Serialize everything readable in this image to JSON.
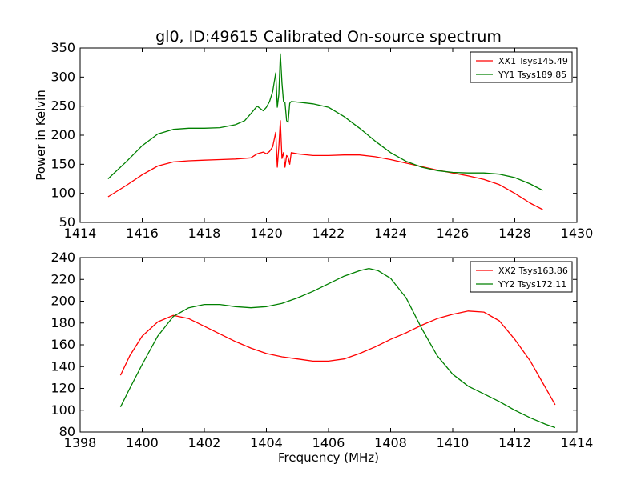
{
  "chart_data": {
    "type": "line",
    "title": "gl0, ID:49615 Calibrated On-source spectrum",
    "charts": [
      {
        "xlim": [
          1414,
          1430
        ],
        "ylim": [
          50,
          350
        ],
        "xticks": [
          "1414",
          "1416",
          "1418",
          "1420",
          "1422",
          "1424",
          "1426",
          "1428",
          "1430"
        ],
        "yticks": [
          "50",
          "100",
          "150",
          "200",
          "250",
          "300",
          "350"
        ],
        "ylabel": "Power in Kelvin",
        "xlabel": "",
        "legend_position": "top-right",
        "series": [
          {
            "name": "XX1 Tsys145.49",
            "color": "#ff0000",
            "x": [
              1414.9,
              1415.5,
              1416.0,
              1416.5,
              1417.0,
              1417.5,
              1418.0,
              1418.5,
              1419.0,
              1419.5,
              1419.7,
              1419.9,
              1420.0,
              1420.1,
              1420.2,
              1420.3,
              1420.35,
              1420.4,
              1420.45,
              1420.5,
              1420.55,
              1420.6,
              1420.65,
              1420.7,
              1420.75,
              1420.8,
              1421.0,
              1421.5,
              1422.0,
              1422.5,
              1423.0,
              1423.5,
              1424.0,
              1424.5,
              1425.0,
              1425.5,
              1426.0,
              1426.5,
              1427.0,
              1427.5,
              1428.0,
              1428.5,
              1428.9
            ],
            "y": [
              94,
              114,
              132,
              147,
              154,
              156,
              157,
              158,
              159,
              161,
              168,
              171,
              168,
              172,
              180,
              205,
              145,
              180,
              225,
              160,
              170,
              145,
              165,
              162,
              150,
              170,
              168,
              165,
              165,
              166,
              166,
              163,
              158,
              152,
              146,
              140,
              135,
              130,
              124,
              115,
              100,
              83,
              72
            ]
          },
          {
            "name": "YY1 Tsys189.85",
            "color": "#008000",
            "x": [
              1414.9,
              1415.5,
              1416.0,
              1416.5,
              1417.0,
              1417.5,
              1418.0,
              1418.5,
              1419.0,
              1419.3,
              1419.5,
              1419.7,
              1419.9,
              1420.0,
              1420.1,
              1420.2,
              1420.3,
              1420.35,
              1420.4,
              1420.45,
              1420.5,
              1420.55,
              1420.6,
              1420.65,
              1420.7,
              1420.75,
              1420.8,
              1421.0,
              1421.5,
              1422.0,
              1422.5,
              1423.0,
              1423.5,
              1424.0,
              1424.5,
              1425.0,
              1425.5,
              1426.0,
              1426.5,
              1427.0,
              1427.5,
              1428.0,
              1428.5,
              1428.9
            ],
            "y": [
              125,
              155,
              182,
              202,
              210,
              212,
              212,
              213,
              218,
              225,
              237,
              250,
              242,
              248,
              258,
              275,
              307,
              248,
              270,
              340,
              290,
              258,
              256,
              225,
              222,
              255,
              258,
              257,
              254,
              248,
              232,
              212,
              190,
              170,
              155,
              145,
              139,
              136,
              135,
              135,
              133,
              127,
              116,
              105
            ]
          }
        ]
      },
      {
        "xlim": [
          1398,
          1414
        ],
        "ylim": [
          80,
          240
        ],
        "xticks": [
          "1398",
          "1400",
          "1402",
          "1404",
          "1406",
          "1408",
          "1410",
          "1412",
          "1414"
        ],
        "yticks": [
          "80",
          "100",
          "120",
          "140",
          "160",
          "180",
          "200",
          "220",
          "240"
        ],
        "ylabel": "",
        "xlabel": "Frequency (MHz)",
        "legend_position": "top-right",
        "series": [
          {
            "name": "XX2 Tsys163.86",
            "color": "#ff0000",
            "x": [
              1399.3,
              1399.6,
              1400.0,
              1400.5,
              1401.0,
              1401.5,
              1402.0,
              1402.5,
              1403.0,
              1403.5,
              1404.0,
              1404.5,
              1405.0,
              1405.5,
              1406.0,
              1406.5,
              1407.0,
              1407.5,
              1408.0,
              1408.5,
              1409.0,
              1409.5,
              1410.0,
              1410.5,
              1411.0,
              1411.5,
              1412.0,
              1412.5,
              1413.0,
              1413.3
            ],
            "y": [
              132,
              150,
              168,
              181,
              187,
              184,
              177,
              170,
              163,
              157,
              152,
              149,
              147,
              145,
              145,
              147,
              152,
              158,
              165,
              171,
              178,
              184,
              188,
              191,
              190,
              182,
              165,
              145,
              120,
              105
            ]
          },
          {
            "name": "YY2 Tsys172.11",
            "color": "#008000",
            "x": [
              1399.3,
              1399.6,
              1400.0,
              1400.5,
              1401.0,
              1401.5,
              1402.0,
              1402.5,
              1403.0,
              1403.5,
              1404.0,
              1404.5,
              1405.0,
              1405.5,
              1406.0,
              1406.5,
              1407.0,
              1407.3,
              1407.6,
              1408.0,
              1408.5,
              1409.0,
              1409.5,
              1410.0,
              1410.5,
              1411.0,
              1411.5,
              1412.0,
              1412.5,
              1413.0,
              1413.3
            ],
            "y": [
              103,
              120,
              142,
              168,
              186,
              194,
              197,
              197,
              195,
              194,
              195,
              198,
              203,
              209,
              216,
              223,
              228,
              230,
              228,
              221,
              203,
              175,
              150,
              133,
              122,
              115,
              108,
              100,
              93,
              87,
              84
            ]
          }
        ]
      }
    ]
  }
}
